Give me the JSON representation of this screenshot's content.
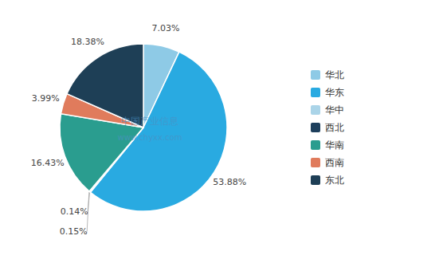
{
  "chart_data": {
    "type": "pie",
    "categories": [
      "华北",
      "华东",
      "华中",
      "西北",
      "华南",
      "西南",
      "东北"
    ],
    "values": [
      7.03,
      53.88,
      0.14,
      0.15,
      16.43,
      3.99,
      18.38
    ],
    "value_labels": [
      "7.03%",
      "53.88%",
      "0.14%",
      "0.15%",
      "16.43%",
      "3.99%",
      "18.38%"
    ],
    "colors": [
      "#8ecae6",
      "#29aae1",
      "#aad4e8",
      "#1d3f5c",
      "#2a9d8f",
      "#e07b5c",
      "#1e3f56"
    ],
    "annotations": [
      "中国产业信息",
      "www.chyxx.com"
    ],
    "data_labels": true,
    "legend": "right"
  }
}
